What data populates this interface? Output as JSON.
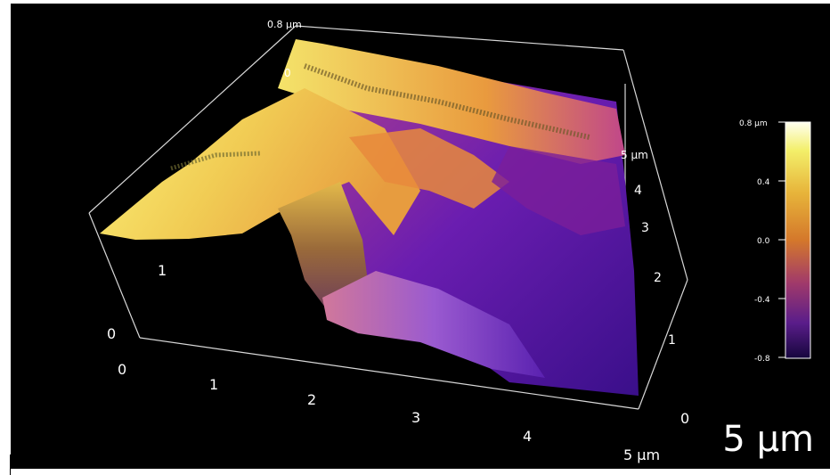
{
  "plot": {
    "type": "3d-surface",
    "z_top_label": "0.8 µm",
    "z_zero_label": "0",
    "x_ticks": [
      "0",
      "1",
      "2",
      "3",
      "4",
      "5 µm"
    ],
    "y_ticks": [
      "0",
      "1",
      "2",
      "3",
      "4",
      "5 µm"
    ],
    "z_left_ticks": [
      "0",
      "1"
    ],
    "colormap": [
      "#0d0887",
      "#5c01a6",
      "#9c179e",
      "#cc4778",
      "#ed7953",
      "#fdb42f",
      "#f0f921",
      "#ffffff"
    ]
  },
  "colorbar": {
    "ticks": [
      "0.8 µm",
      "0.4",
      "0.0",
      "-0.4",
      "-0.8"
    ],
    "values": [
      0.8,
      0.4,
      0.0,
      -0.4,
      -0.8
    ],
    "range": [
      -0.8,
      0.8
    ]
  },
  "scale_bar": {
    "label": "5 µm"
  }
}
